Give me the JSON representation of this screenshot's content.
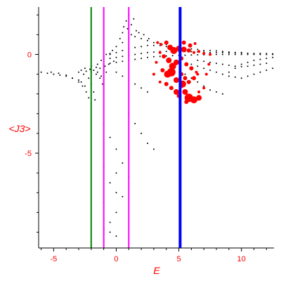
{
  "chart_data": {
    "type": "scatter",
    "title": "",
    "xlabel": "E",
    "ylabel": "<J3>",
    "xlim": [
      -6.2,
      12.6
    ],
    "ylim": [
      -9.8,
      2.4
    ],
    "x_ticks": [
      -5,
      0,
      5,
      10
    ],
    "y_ticks": [
      -5,
      0
    ],
    "tick_labels_x": [
      "-5",
      "0",
      "5",
      "10"
    ],
    "tick_labels_y": [
      "-5",
      "0"
    ],
    "axis_color": "#000000",
    "label_color": "#ff0000",
    "vertical_lines": [
      {
        "x": -2.0,
        "color": "#008000",
        "weight": "thin"
      },
      {
        "x": -1.0,
        "color": "#ff00ff",
        "weight": "thin"
      },
      {
        "x": 1.0,
        "color": "#ff00ff",
        "weight": "thin"
      },
      {
        "x": 5.1,
        "color": "#0000ff",
        "weight": "thick"
      }
    ],
    "series": [
      {
        "color": "#000000",
        "marker": "small dot",
        "points": [
          [
            -6.0,
            -0.9
          ],
          [
            -5.5,
            -0.95
          ],
          [
            -5.0,
            -1.0
          ],
          [
            -4.5,
            -1.05
          ],
          [
            -4.0,
            -1.1
          ],
          [
            -3.5,
            -1.2
          ],
          [
            -3.0,
            -1.3
          ],
          [
            -2.8,
            -1.4
          ],
          [
            -2.5,
            -1.6
          ],
          [
            -5.2,
            -0.9
          ],
          [
            -4.6,
            -0.95
          ],
          [
            -4.0,
            -1.05
          ],
          [
            -3.5,
            -1.2
          ],
          [
            -3.0,
            -1.4
          ],
          [
            -2.7,
            -1.6
          ],
          [
            -2.4,
            -1.9
          ],
          [
            -2.2,
            -2.2
          ],
          [
            -3.0,
            -0.9
          ],
          [
            -2.6,
            -1.0
          ],
          [
            -2.2,
            -1.2
          ],
          [
            -2.0,
            -1.5
          ],
          [
            -1.8,
            -1.9
          ],
          [
            -1.7,
            -2.3
          ],
          [
            -2.8,
            -0.8
          ],
          [
            -2.4,
            -0.85
          ],
          [
            -2.0,
            -0.9
          ],
          [
            -1.6,
            -1.0
          ],
          [
            -1.3,
            -1.2
          ],
          [
            -1.1,
            -1.5
          ],
          [
            -2.5,
            -0.7
          ],
          [
            -2.1,
            -0.75
          ],
          [
            -1.8,
            -0.8
          ],
          [
            -1.5,
            -0.9
          ],
          [
            -1.2,
            -1.1
          ],
          [
            -1.0,
            -1.3
          ],
          [
            -2.0,
            -0.6
          ],
          [
            -1.6,
            -0.65
          ],
          [
            -1.3,
            -0.7
          ],
          [
            -1.0,
            -0.8
          ],
          [
            -0.8,
            -0.9
          ],
          [
            -1.5,
            -0.5
          ],
          [
            -1.0,
            -0.5
          ],
          [
            -0.5,
            -0.45
          ],
          [
            0.0,
            -0.4
          ],
          [
            0.5,
            -0.35
          ],
          [
            1.0,
            -0.3
          ],
          [
            1.5,
            -0.25
          ],
          [
            2.0,
            -0.2
          ],
          [
            2.5,
            -0.15
          ],
          [
            3.0,
            -0.12
          ],
          [
            3.5,
            -0.1
          ],
          [
            4.0,
            -0.08
          ],
          [
            4.5,
            -0.06
          ],
          [
            5.0,
            -0.05
          ],
          [
            5.5,
            -0.04
          ],
          [
            6.0,
            -0.03
          ],
          [
            6.5,
            -0.02
          ],
          [
            7.0,
            -0.02
          ],
          [
            7.5,
            -0.01
          ],
          [
            8.0,
            0.0
          ],
          [
            8.5,
            0.0
          ],
          [
            9.0,
            0.0
          ],
          [
            9.5,
            0.0
          ],
          [
            10.0,
            0.0
          ],
          [
            10.5,
            0.0
          ],
          [
            11.0,
            0.0
          ],
          [
            11.5,
            0.0
          ],
          [
            12.0,
            0.0
          ],
          [
            12.5,
            0.0
          ],
          [
            -1.0,
            -0.25
          ],
          [
            -0.5,
            -0.2
          ],
          [
            0.0,
            -0.15
          ],
          [
            0.5,
            -0.1
          ],
          [
            1.0,
            -0.05
          ],
          [
            1.5,
            0.0
          ],
          [
            2.0,
            0.05
          ],
          [
            2.5,
            0.1
          ],
          [
            3.0,
            0.12
          ],
          [
            3.5,
            0.15
          ],
          [
            4.0,
            0.15
          ],
          [
            4.5,
            0.15
          ],
          [
            5.0,
            0.15
          ],
          [
            5.5,
            0.15
          ],
          [
            6.0,
            0.14
          ],
          [
            6.5,
            0.13
          ],
          [
            7.0,
            0.12
          ],
          [
            7.5,
            0.1
          ],
          [
            8.0,
            0.1
          ],
          [
            8.5,
            0.1
          ],
          [
            9.0,
            0.08
          ],
          [
            9.5,
            0.08
          ],
          [
            10.0,
            0.07
          ],
          [
            10.5,
            0.06
          ],
          [
            11.0,
            0.05
          ],
          [
            11.5,
            0.05
          ],
          [
            12.0,
            0.04
          ],
          [
            12.5,
            0.03
          ],
          [
            -0.5,
            0.05
          ],
          [
            0.0,
            0.1
          ],
          [
            0.5,
            0.2
          ],
          [
            1.0,
            0.3
          ],
          [
            1.5,
            0.35
          ],
          [
            2.0,
            0.4
          ],
          [
            2.5,
            0.45
          ],
          [
            3.0,
            0.45
          ],
          [
            3.5,
            0.45
          ],
          [
            4.0,
            0.4
          ],
          [
            4.5,
            0.35
          ],
          [
            5.0,
            0.3
          ],
          [
            5.5,
            0.3
          ],
          [
            6.0,
            0.28
          ],
          [
            6.5,
            0.25
          ],
          [
            7.0,
            0.2
          ],
          [
            7.5,
            0.2
          ],
          [
            8.0,
            0.18
          ],
          [
            8.5,
            0.15
          ],
          [
            9.0,
            0.12
          ],
          [
            9.5,
            0.1
          ],
          [
            10.0,
            0.1
          ],
          [
            0.0,
            0.4
          ],
          [
            0.5,
            0.6
          ],
          [
            1.0,
            0.8
          ],
          [
            1.2,
            1.0
          ],
          [
            1.5,
            0.9
          ],
          [
            2.0,
            0.8
          ],
          [
            2.5,
            0.7
          ],
          [
            3.0,
            0.6
          ],
          [
            3.5,
            0.55
          ],
          [
            4.0,
            0.5
          ],
          [
            0.5,
            1.1
          ],
          [
            0.9,
            1.3
          ],
          [
            1.2,
            1.5
          ],
          [
            1.6,
            1.2
          ],
          [
            1.0,
            2.0
          ],
          [
            0.8,
            1.7
          ],
          [
            1.4,
            1.8
          ],
          [
            0.3,
            0.8
          ],
          [
            0.6,
            1.4
          ],
          [
            1.8,
            1.1
          ],
          [
            2.2,
            1.0
          ],
          [
            2.6,
            0.8
          ],
          [
            -1.2,
            -0.3
          ],
          [
            -1.0,
            -0.1
          ],
          [
            -0.8,
            0.0
          ],
          [
            -0.5,
            0.0
          ],
          [
            -0.3,
            0.2
          ],
          [
            -0.9,
            -0.6
          ],
          [
            -0.6,
            -0.5
          ],
          [
            -0.2,
            -0.35
          ],
          [
            0.0,
            -0.9
          ],
          [
            0.5,
            -1.1
          ],
          [
            1.0,
            -1.3
          ],
          [
            1.5,
            -1.5
          ],
          [
            2.0,
            -1.7
          ],
          [
            2.5,
            -1.9
          ],
          [
            1.0,
            -3.0
          ],
          [
            1.5,
            -3.5
          ],
          [
            2.0,
            -4.0
          ],
          [
            2.5,
            -4.5
          ],
          [
            3.0,
            -4.8
          ],
          [
            -1.0,
            -3.5
          ],
          [
            -0.5,
            -4.2
          ],
          [
            0.0,
            -4.8
          ],
          [
            0.5,
            -5.5
          ],
          [
            -1.0,
            -5.7
          ],
          [
            0.0,
            -6.0
          ],
          [
            1.0,
            -6.2
          ],
          [
            -0.5,
            -6.5
          ],
          [
            0.0,
            -7.0
          ],
          [
            0.5,
            -7.2
          ],
          [
            -1.0,
            -7.5
          ],
          [
            0.0,
            -8.0
          ],
          [
            -0.5,
            -8.5
          ],
          [
            -1.0,
            -8.8
          ],
          [
            -0.5,
            -9.0
          ],
          [
            0.0,
            -9.2
          ],
          [
            6.0,
            -0.5
          ],
          [
            6.5,
            -0.6
          ],
          [
            7.0,
            -0.7
          ],
          [
            7.5,
            -0.8
          ],
          [
            8.0,
            -0.9
          ],
          [
            8.5,
            -1.0
          ],
          [
            9.0,
            -1.1
          ],
          [
            9.5,
            -1.15
          ],
          [
            10.0,
            -1.2
          ],
          [
            10.5,
            -1.1
          ],
          [
            11.0,
            -1.0
          ],
          [
            11.5,
            -0.9
          ],
          [
            12.0,
            -0.8
          ],
          [
            12.5,
            -0.7
          ],
          [
            6.5,
            -0.3
          ],
          [
            7.0,
            -0.35
          ],
          [
            7.5,
            -0.4
          ],
          [
            8.0,
            -0.45
          ],
          [
            8.5,
            -0.5
          ],
          [
            9.0,
            -0.55
          ],
          [
            9.5,
            -0.6
          ],
          [
            10.0,
            -0.62
          ],
          [
            10.5,
            -0.6
          ],
          [
            11.0,
            -0.55
          ],
          [
            11.5,
            -0.5
          ],
          [
            12.0,
            -0.45
          ],
          [
            5.5,
            -1.0
          ],
          [
            6.0,
            -1.2
          ],
          [
            6.5,
            -1.4
          ],
          [
            7.0,
            -1.6
          ],
          [
            7.5,
            -1.8
          ],
          [
            8.0,
            -1.9
          ],
          [
            8.5,
            -2.0
          ],
          [
            9.0,
            -0.9
          ],
          [
            9.5,
            -0.7
          ],
          [
            10.0,
            -0.5
          ],
          [
            10.5,
            -0.4
          ],
          [
            11.0,
            -0.3
          ],
          [
            11.5,
            -0.25
          ],
          [
            12.0,
            -0.2
          ],
          [
            12.5,
            -0.15
          ]
        ]
      },
      {
        "color": "#ff0000",
        "marker": "filled circle, size varies",
        "points": [
          [
            3.3,
            0.6,
            2
          ],
          [
            3.6,
            0.5,
            2
          ],
          [
            4.0,
            0.6,
            3
          ],
          [
            4.3,
            0.35,
            4
          ],
          [
            4.6,
            0.2,
            5
          ],
          [
            5.0,
            0.3,
            4
          ],
          [
            5.4,
            0.25,
            4
          ],
          [
            5.8,
            0.2,
            3
          ],
          [
            6.2,
            0.1,
            2
          ],
          [
            6.6,
            0.15,
            2
          ],
          [
            7.0,
            0.05,
            2
          ],
          [
            7.5,
            0.0,
            2
          ],
          [
            3.5,
            0.1,
            2
          ],
          [
            3.8,
            -0.1,
            3
          ],
          [
            4.2,
            -0.3,
            4
          ],
          [
            4.5,
            -0.6,
            5
          ],
          [
            4.8,
            -0.4,
            4
          ],
          [
            5.2,
            -0.2,
            3
          ],
          [
            5.6,
            -0.5,
            3
          ],
          [
            6.0,
            -0.7,
            3
          ],
          [
            6.4,
            -0.9,
            2
          ],
          [
            3.7,
            -0.8,
            3
          ],
          [
            4.1,
            -1.0,
            5
          ],
          [
            4.4,
            -0.9,
            6
          ],
          [
            4.8,
            -1.3,
            4
          ],
          [
            5.2,
            -1.0,
            3
          ],
          [
            5.5,
            -1.2,
            3
          ],
          [
            5.8,
            -1.4,
            3
          ],
          [
            6.2,
            -1.2,
            3
          ],
          [
            6.5,
            -1.0,
            2
          ],
          [
            4.0,
            -1.5,
            3
          ],
          [
            4.4,
            -1.7,
            3
          ],
          [
            4.8,
            -1.9,
            4
          ],
          [
            5.2,
            -1.6,
            3
          ],
          [
            5.5,
            -1.9,
            4
          ],
          [
            5.8,
            -2.2,
            6
          ],
          [
            6.2,
            -2.3,
            5
          ],
          [
            6.6,
            -2.2,
            4
          ],
          [
            7.0,
            -1.7,
            2
          ],
          [
            5.3,
            -1.5,
            5
          ],
          [
            5.0,
            -2.1,
            3
          ],
          [
            5.6,
            -2.4,
            3
          ],
          [
            6.6,
            -1.9,
            2
          ],
          [
            3.2,
            -0.4,
            2
          ],
          [
            3.0,
            -1.0,
            2
          ],
          [
            3.5,
            -1.4,
            2
          ],
          [
            7.2,
            -1.0,
            2
          ],
          [
            7.4,
            -0.5,
            2
          ],
          [
            5.4,
            0.6,
            3
          ],
          [
            5.9,
            0.45,
            3
          ],
          [
            6.3,
            0.55,
            2
          ]
        ]
      }
    ]
  }
}
